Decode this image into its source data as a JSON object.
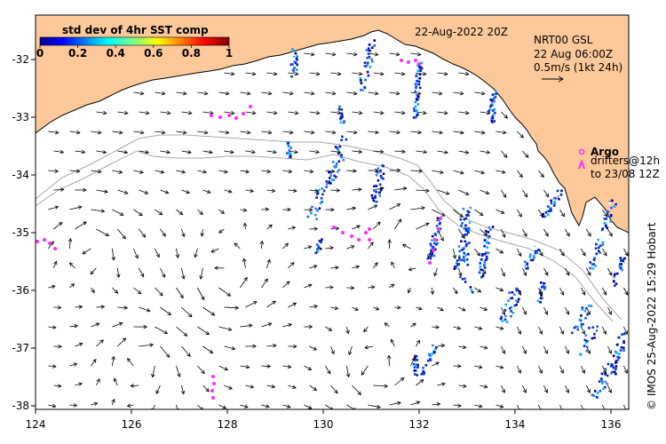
{
  "colors": {
    "land": "#fdc99a",
    "coast": "#000000",
    "isobath": "#a8a8a8",
    "argo": "#ff2bff",
    "sst_low": "#0a2fb0",
    "arrow": "#000000"
  },
  "map": {
    "date_label": "22-Aug-2022 20Z",
    "lon_ticks": [
      "124",
      "126",
      "128",
      "130",
      "132",
      "134",
      "136"
    ],
    "lat_ticks": [
      "-32",
      "-33",
      "-34",
      "-35",
      "-36",
      "-37",
      "-38"
    ],
    "credit": "© IMOS 25-Aug-2022 15:29 Hobart"
  },
  "colorbar": {
    "title": "std dev of 4hr SST comp",
    "ticks": [
      "0",
      "0.2",
      "0.4",
      "0.6",
      "0.8",
      "1"
    ]
  },
  "current_legend": {
    "product": "NRT00 GSL",
    "time": "22 Aug 06:00Z",
    "scale": "0.5m/s (1kt 24h)"
  },
  "argo_legend": {
    "argo_label": "Argo",
    "drifters_label": "drifters@12h",
    "to_label": "to 23/08 12Z"
  }
}
